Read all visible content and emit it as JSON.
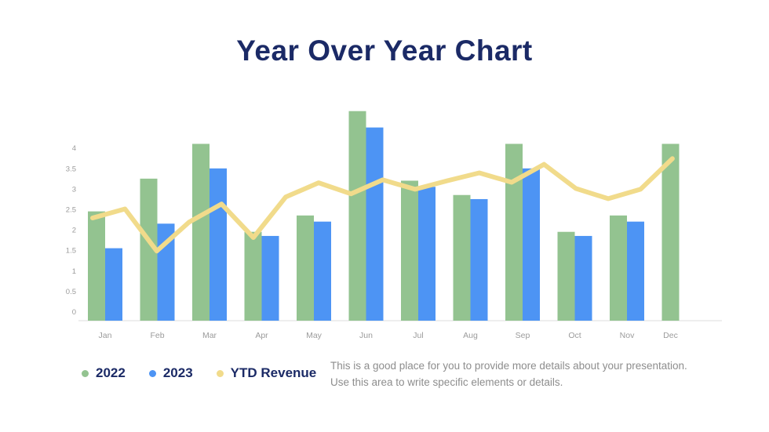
{
  "slide": {
    "title": "Year Over Year Chart",
    "description": {
      "line1": "This is a good place for you to provide more details about your presentation.",
      "line2": "Use this area to write specific elements or details."
    }
  },
  "legend": {
    "items": [
      {
        "label": "2022",
        "color": "#93C390"
      },
      {
        "label": "2023",
        "color": "#4D94F4"
      },
      {
        "label": "YTD Revenue",
        "color": "#F1DB8B"
      }
    ]
  },
  "colors": {
    "background": "#FFFFFF",
    "title_text": "#1B2A66",
    "legend_text": "#1B2A66",
    "axis_text": "#9B9B9B",
    "axis_line": "#DCDCDC",
    "description_text": "#8D8D8D",
    "bar_2022": "#93C390",
    "bar_2023": "#4D94F4",
    "line_ytd": "#F1DB8B"
  },
  "chart_data": {
    "type": "bar+line",
    "title": "Year Over Year Chart",
    "categories": [
      "Jan",
      "Feb",
      "Mar",
      "Apr",
      "May",
      "Jun",
      "Jul",
      "Aug",
      "Sep",
      "Oct",
      "Nov",
      "Dec"
    ],
    "y_axis_ticks": [
      0,
      0.5,
      1,
      1.5,
      2,
      2.5,
      3,
      3.5,
      4
    ],
    "ylim": [
      0,
      5
    ],
    "xlabel": "",
    "ylabel": "",
    "grid": false,
    "legend_position": "bottom-left",
    "series": [
      {
        "name": "2022",
        "type": "bar",
        "color": "#93C390",
        "values": [
          2.45,
          3.25,
          4.1,
          1.95,
          2.35,
          4.9,
          3.2,
          2.85,
          4.1,
          1.95,
          2.35,
          4.1
        ]
      },
      {
        "name": "2023",
        "type": "bar",
        "color": "#4D94F4",
        "values": [
          1.55,
          2.15,
          3.5,
          1.85,
          2.2,
          4.5,
          3.05,
          2.75,
          3.5,
          1.85,
          2.2,
          null
        ]
      },
      {
        "name": "YTD Revenue",
        "type": "line",
        "color": "#F1DB8B",
        "points_month_value": [
          [
            -0.24,
            2.29
          ],
          [
            0.38,
            2.51
          ],
          [
            0.99,
            1.48
          ],
          [
            1.61,
            2.19
          ],
          [
            2.23,
            2.63
          ],
          [
            2.84,
            1.81
          ],
          [
            3.46,
            2.8
          ],
          [
            4.09,
            3.15
          ],
          [
            4.71,
            2.88
          ],
          [
            5.32,
            3.22
          ],
          [
            5.94,
            2.99
          ],
          [
            6.56,
            3.2
          ],
          [
            7.17,
            3.39
          ],
          [
            7.79,
            3.16
          ],
          [
            8.41,
            3.6
          ],
          [
            9.02,
            3.01
          ],
          [
            9.64,
            2.76
          ],
          [
            10.26,
            2.99
          ],
          [
            10.87,
            3.74
          ]
        ]
      }
    ]
  }
}
